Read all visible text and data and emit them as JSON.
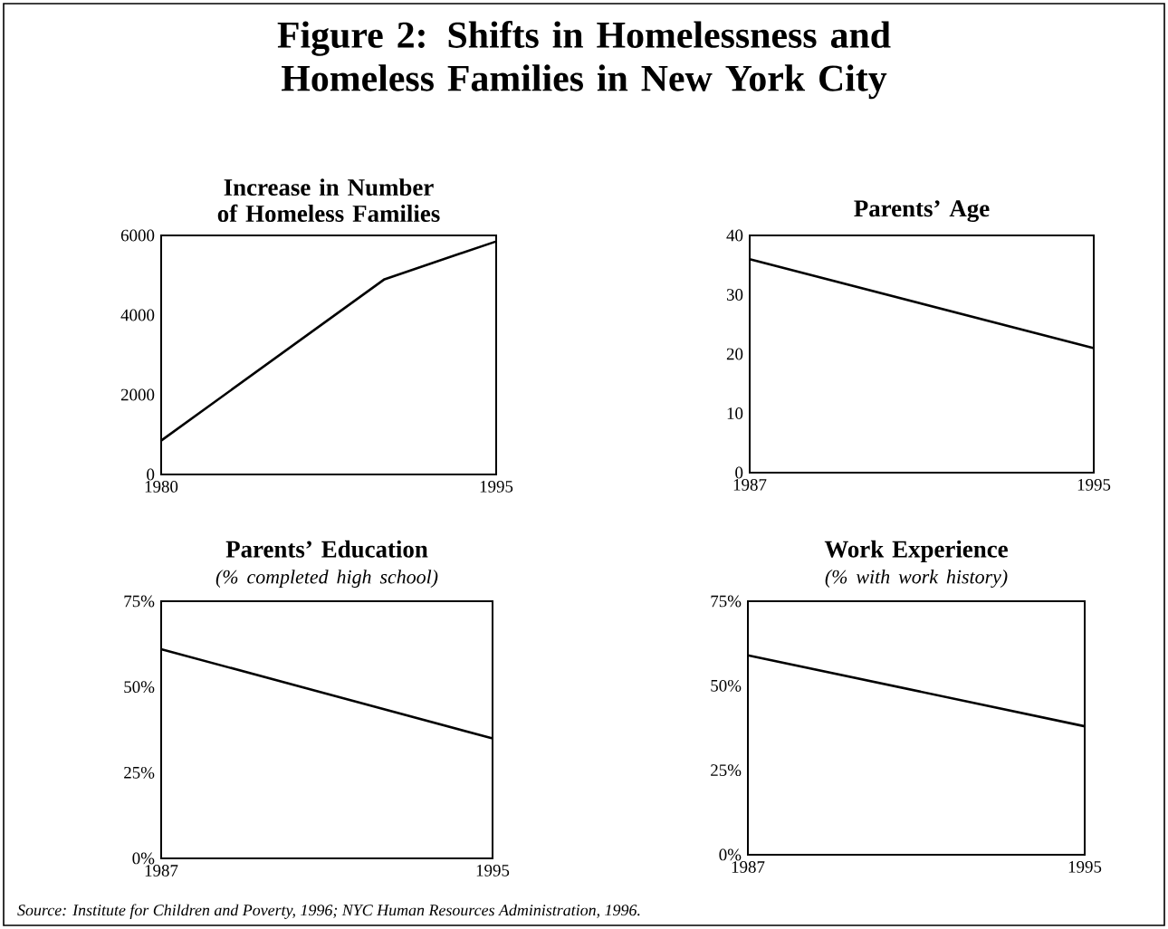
{
  "chart_data": [
    {
      "type": "other",
      "title": "Figure 2:  Shifts in Homelessness and Homeless Families in New York City",
      "annotations": [
        "Source:  Institute for Children and Poverty, 1996; NYC Human Resources Administration, 1996."
      ]
    },
    {
      "type": "line",
      "title": "Increase in Number of Homeless Families",
      "xlim": [
        1980,
        1995
      ],
      "xticks": [
        1980,
        1995
      ],
      "ylim": [
        0,
        6000
      ],
      "yticks": [
        0,
        2000,
        4000,
        6000
      ],
      "marker": "none",
      "series": [
        {
          "color": "#000000",
          "x": [
            1980,
            1990,
            1995
          ],
          "values": [
            850,
            4900,
            5850
          ]
        }
      ]
    },
    {
      "type": "line",
      "title": "Parents’ Age",
      "xlim": [
        1987,
        1995
      ],
      "xticks": [
        1987,
        1995
      ],
      "ylim": [
        0,
        40
      ],
      "yticks": [
        0,
        10,
        20,
        30,
        40
      ],
      "marker": "none",
      "series": [
        {
          "color": "#000000",
          "x": [
            1987,
            1995
          ],
          "values": [
            36,
            21
          ]
        }
      ]
    },
    {
      "type": "line",
      "title": "Parents’ Education",
      "subtitle": "(% completed high school)",
      "xlim": [
        1987,
        1995
      ],
      "xticks": [
        1987,
        1995
      ],
      "ylim": [
        0,
        75
      ],
      "yticks": [
        {
          "value": 0,
          "label": "0%"
        },
        {
          "value": 25,
          "label": "25%"
        },
        {
          "value": 50,
          "label": "50%"
        },
        {
          "value": 75,
          "label": "75%"
        }
      ],
      "marker": "none",
      "series": [
        {
          "color": "#000000",
          "x": [
            1987,
            1995
          ],
          "values": [
            61,
            35
          ]
        }
      ]
    },
    {
      "type": "line",
      "title": "Work Experience",
      "subtitle": "(% with work history)",
      "xlim": [
        1987,
        1995
      ],
      "xticks": [
        1987,
        1995
      ],
      "ylim": [
        0,
        75
      ],
      "yticks": [
        {
          "value": 0,
          "label": "0%"
        },
        {
          "value": 25,
          "label": "25%"
        },
        {
          "value": 50,
          "label": "50%"
        },
        {
          "value": 75,
          "label": "75%"
        }
      ],
      "marker": "none",
      "series": [
        {
          "color": "#000000",
          "x": [
            1987,
            1995
          ],
          "values": [
            59,
            38
          ]
        }
      ]
    }
  ]
}
